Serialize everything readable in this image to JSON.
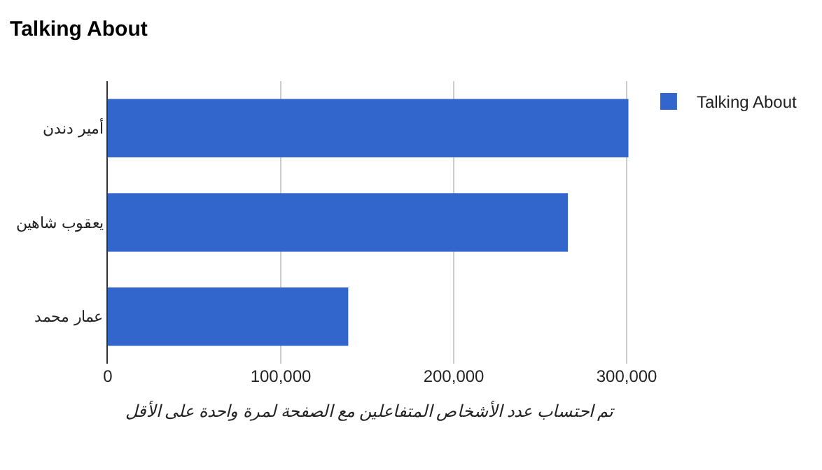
{
  "chart_data": {
    "type": "bar",
    "orientation": "horizontal",
    "title": "Talking About",
    "xlabel": "تم احتساب عدد الأشخاص المتفاعلين مع الصفحة لمرة واحدة على الأقل",
    "categories": [
      "أمير دندن",
      "يعقوب شاهين",
      "عمار محمد"
    ],
    "series": [
      {
        "name": "Talking About",
        "color": "#3366cc",
        "values": [
          301000,
          266000,
          139000
        ]
      }
    ],
    "xlim": [
      0,
      302000
    ],
    "xticks": [
      0,
      {
        "value": 100000,
        "label": "100,000"
      },
      {
        "value": 200000,
        "label": "200,000"
      },
      {
        "value": 300000,
        "label": "300,000"
      }
    ],
    "grid": "x",
    "legend": "top right"
  }
}
